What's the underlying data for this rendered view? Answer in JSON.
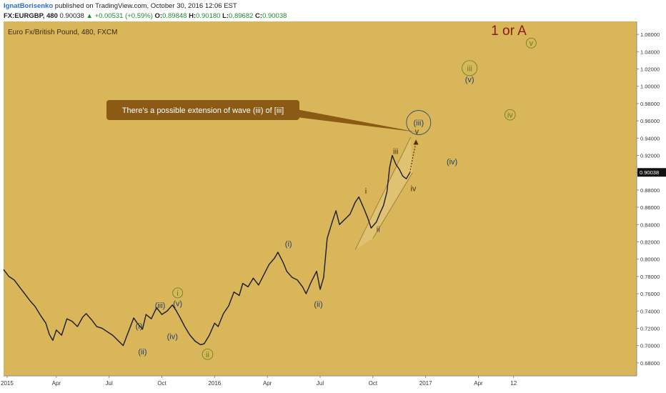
{
  "header": {
    "author": "IgnatBorisenko",
    "published": "published on TradingView.com, October 30, 2016 12:06 EST",
    "symbol": "FX:EURGBP, 480",
    "last": "0.90038",
    "change": "+0.00531 (+0.59%)",
    "o_label": "O:",
    "o_val": "0.89848",
    "h_label": "H:",
    "h_val": "0.90180",
    "l_label": "L:",
    "l_val": "0.89682",
    "c_label": "C:",
    "c_val": "0.90038"
  },
  "colors": {
    "background": "#d9b65a",
    "candle": "#1a1a1a",
    "wave_blue": "#1f3f6e",
    "wave_green": "#5f7f1f",
    "wave_brown": "#4a3208",
    "callout": "#8b5a14",
    "title_red": "#8b1a0e"
  },
  "chart_data": {
    "type": "line",
    "title": "Euro Fx/British Pound, 480, FXCM",
    "ylim": [
      0.665,
      1.075
    ],
    "y_ticks": [
      "1.06000",
      "1.04000",
      "1.02000",
      "1.00000",
      "0.98000",
      "0.96000",
      "0.94000",
      "0.92000",
      "0.90000",
      "0.88000",
      "0.86000",
      "0.84000",
      "0.82000",
      "0.80000",
      "0.78000",
      "0.76000",
      "0.74000",
      "0.72000",
      "0.70000",
      "0.68000"
    ],
    "x_ticks": [
      "2015",
      "Apr",
      "Jul",
      "Oct",
      "2016",
      "Apr",
      "Jul",
      "Oct",
      "2017",
      "Apr",
      "12"
    ],
    "x_tick_index": [
      0.2,
      3,
      6,
      9,
      12,
      15,
      18,
      21,
      24,
      27,
      29
    ],
    "x_range": [
      0,
      36
    ],
    "price_path": [
      [
        0.0,
        0.788
      ],
      [
        0.3,
        0.78
      ],
      [
        0.6,
        0.776
      ],
      [
        0.9,
        0.768
      ],
      [
        1.2,
        0.76
      ],
      [
        1.5,
        0.752
      ],
      [
        1.8,
        0.745
      ],
      [
        2.1,
        0.735
      ],
      [
        2.4,
        0.726
      ],
      [
        2.6,
        0.713
      ],
      [
        2.8,
        0.706
      ],
      [
        3.0,
        0.718
      ],
      [
        3.3,
        0.712
      ],
      [
        3.6,
        0.731
      ],
      [
        3.9,
        0.728
      ],
      [
        4.2,
        0.722
      ],
      [
        4.5,
        0.733
      ],
      [
        4.7,
        0.737
      ],
      [
        5.0,
        0.73
      ],
      [
        5.3,
        0.722
      ],
      [
        5.6,
        0.72
      ],
      [
        5.9,
        0.716
      ],
      [
        6.2,
        0.712
      ],
      [
        6.5,
        0.706
      ],
      [
        6.8,
        0.7
      ],
      [
        7.1,
        0.716
      ],
      [
        7.4,
        0.732
      ],
      [
        7.6,
        0.726
      ],
      [
        7.9,
        0.719
      ],
      [
        8.1,
        0.736
      ],
      [
        8.4,
        0.731
      ],
      [
        8.7,
        0.744
      ],
      [
        9.0,
        0.736
      ],
      [
        9.3,
        0.74
      ],
      [
        9.6,
        0.747
      ],
      [
        9.8,
        0.741
      ],
      [
        10.1,
        0.73
      ],
      [
        10.3,
        0.722
      ],
      [
        10.6,
        0.712
      ],
      [
        10.9,
        0.705
      ],
      [
        11.2,
        0.701
      ],
      [
        11.4,
        0.702
      ],
      [
        11.7,
        0.712
      ],
      [
        12.0,
        0.726
      ],
      [
        12.2,
        0.722
      ],
      [
        12.5,
        0.737
      ],
      [
        12.8,
        0.746
      ],
      [
        13.1,
        0.762
      ],
      [
        13.4,
        0.758
      ],
      [
        13.6,
        0.772
      ],
      [
        13.9,
        0.768
      ],
      [
        14.2,
        0.778
      ],
      [
        14.5,
        0.77
      ],
      [
        14.8,
        0.782
      ],
      [
        15.1,
        0.794
      ],
      [
        15.4,
        0.801
      ],
      [
        15.6,
        0.808
      ],
      [
        15.9,
        0.796
      ],
      [
        16.1,
        0.786
      ],
      [
        16.4,
        0.779
      ],
      [
        16.7,
        0.776
      ],
      [
        17.0,
        0.768
      ],
      [
        17.2,
        0.76
      ],
      [
        17.5,
        0.774
      ],
      [
        17.8,
        0.786
      ],
      [
        18.0,
        0.765
      ],
      [
        18.2,
        0.779
      ],
      [
        18.4,
        0.824
      ],
      [
        18.7,
        0.844
      ],
      [
        18.9,
        0.856
      ],
      [
        19.1,
        0.84
      ],
      [
        19.4,
        0.846
      ],
      [
        19.7,
        0.852
      ],
      [
        20.0,
        0.866
      ],
      [
        20.2,
        0.872
      ],
      [
        20.5,
        0.858
      ],
      [
        20.7,
        0.848
      ],
      [
        20.9,
        0.836
      ],
      [
        21.2,
        0.843
      ],
      [
        21.4,
        0.853
      ],
      [
        21.6,
        0.862
      ],
      [
        21.8,
        0.878
      ],
      [
        21.95,
        0.906
      ],
      [
        22.1,
        0.92
      ],
      [
        22.3,
        0.91
      ],
      [
        22.5,
        0.904
      ],
      [
        22.7,
        0.896
      ],
      [
        22.9,
        0.893
      ],
      [
        23.1,
        0.9
      ]
    ],
    "projection": [
      [
        23.1,
        0.9
      ],
      [
        23.25,
        0.916
      ],
      [
        23.45,
        0.935
      ]
    ],
    "channel": [
      {
        "from": [
          20.0,
          0.811
        ],
        "to": [
          23.15,
          0.941
        ]
      },
      {
        "from": [
          21.0,
          0.824
        ],
        "to": [
          23.25,
          0.9
        ]
      }
    ],
    "last_price_label": "0.90038",
    "annotation": "There's a possible extension of wave (iii) of [iii]",
    "corner_label": "1 or A",
    "wave_labels": [
      {
        "text": "(i)",
        "x": 7.7,
        "y": 0.723,
        "color": "blue",
        "circle": false
      },
      {
        "text": "(ii)",
        "x": 7.9,
        "y": 0.693,
        "color": "blue",
        "circle": false
      },
      {
        "text": "(iii)",
        "x": 8.9,
        "y": 0.747,
        "color": "blue",
        "circle": false
      },
      {
        "text": "(iv)",
        "x": 9.6,
        "y": 0.711,
        "color": "blue",
        "circle": false
      },
      {
        "text": "(v)",
        "x": 9.9,
        "y": 0.749,
        "color": "blue",
        "circle": false
      },
      {
        "text": "i",
        "x": 9.9,
        "y": 0.761,
        "color": "green",
        "circle": true
      },
      {
        "text": "ii",
        "x": 11.6,
        "y": 0.69,
        "color": "green",
        "circle": true
      },
      {
        "text": "(i)",
        "x": 16.2,
        "y": 0.818,
        "color": "blue",
        "circle": false
      },
      {
        "text": "(ii)",
        "x": 17.9,
        "y": 0.748,
        "color": "blue",
        "circle": false
      },
      {
        "text": "i",
        "x": 20.6,
        "y": 0.879,
        "color": "brown",
        "circle": false
      },
      {
        "text": "ii",
        "x": 21.3,
        "y": 0.835,
        "color": "brown",
        "circle": false
      },
      {
        "text": "iii",
        "x": 22.3,
        "y": 0.925,
        "color": "brown",
        "circle": false
      },
      {
        "text": "iv",
        "x": 23.3,
        "y": 0.882,
        "color": "brown",
        "circle": false
      },
      {
        "text": "v",
        "x": 23.5,
        "y": 0.948,
        "color": "brown",
        "circle": false
      },
      {
        "text": "(iii)",
        "x": 23.6,
        "y": 0.958,
        "color": "blue",
        "circle": true
      },
      {
        "text": "(iv)",
        "x": 25.5,
        "y": 0.913,
        "color": "blue",
        "circle": false
      },
      {
        "text": "(v)",
        "x": 26.5,
        "y": 1.008,
        "color": "blue",
        "circle": false
      },
      {
        "text": "iii",
        "x": 26.5,
        "y": 1.021,
        "color": "green",
        "circle": true
      },
      {
        "text": "iv",
        "x": 28.8,
        "y": 0.967,
        "color": "green",
        "circle": true
      },
      {
        "text": "v",
        "x": 30.0,
        "y": 1.05,
        "color": "green",
        "circle": true
      }
    ]
  }
}
